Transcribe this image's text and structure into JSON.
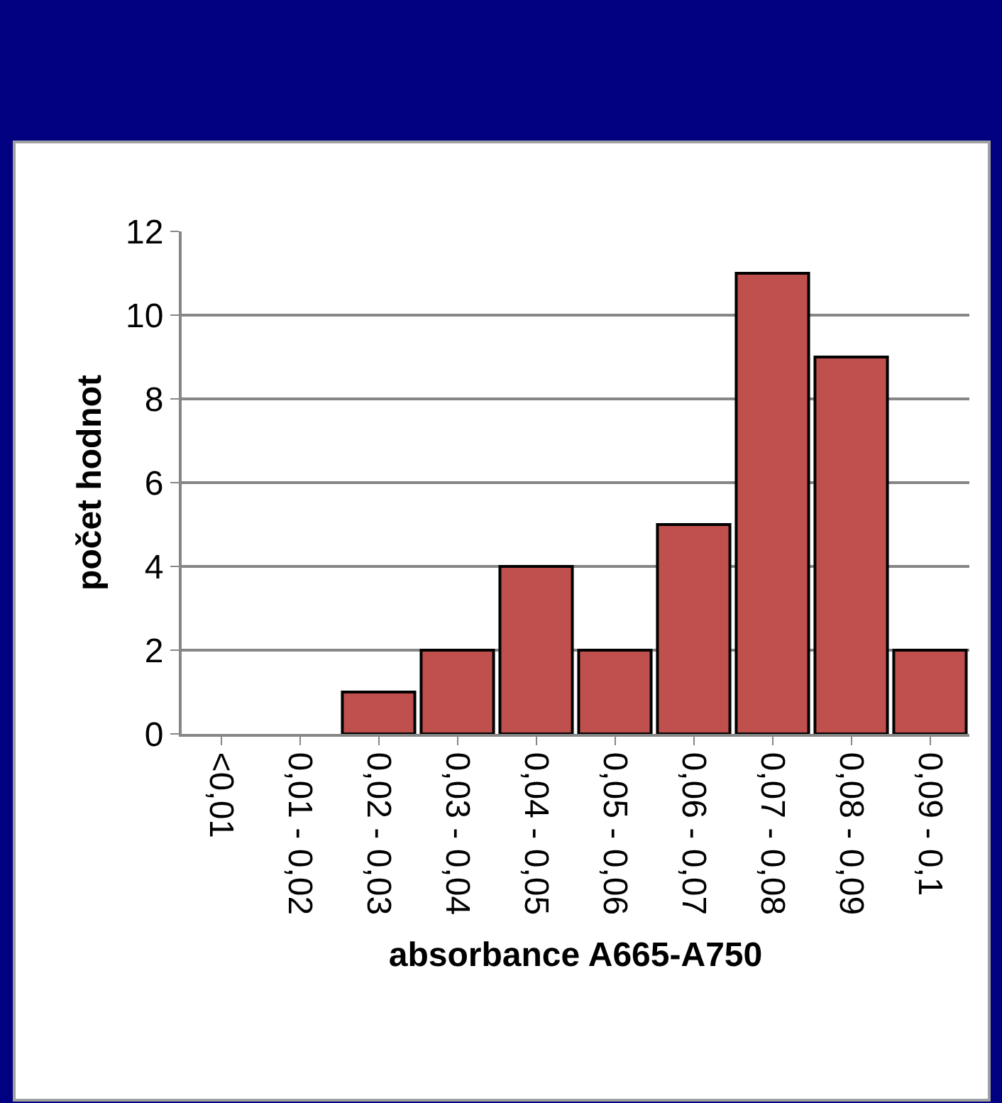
{
  "chart_data": {
    "type": "bar",
    "xlabel": "absorbance A665-A750",
    "ylabel": "počet hodnot",
    "categories": [
      "<0,01",
      "0,01 - 0,02",
      "0,02 - 0,03",
      "0,03 - 0,04",
      "0,04 - 0,05",
      "0,05 - 0,06",
      "0,06 - 0,07",
      "0,07 - 0,08",
      "0,08 - 0,09",
      "0,09 - 0,1"
    ],
    "values": [
      0,
      0,
      1,
      2,
      4,
      2,
      5,
      11,
      9,
      2
    ],
    "color": "#c0504d",
    "ylim": [
      0,
      12
    ],
    "yticks": [
      0,
      2,
      4,
      6,
      8,
      10,
      12
    ],
    "grid": "y"
  }
}
